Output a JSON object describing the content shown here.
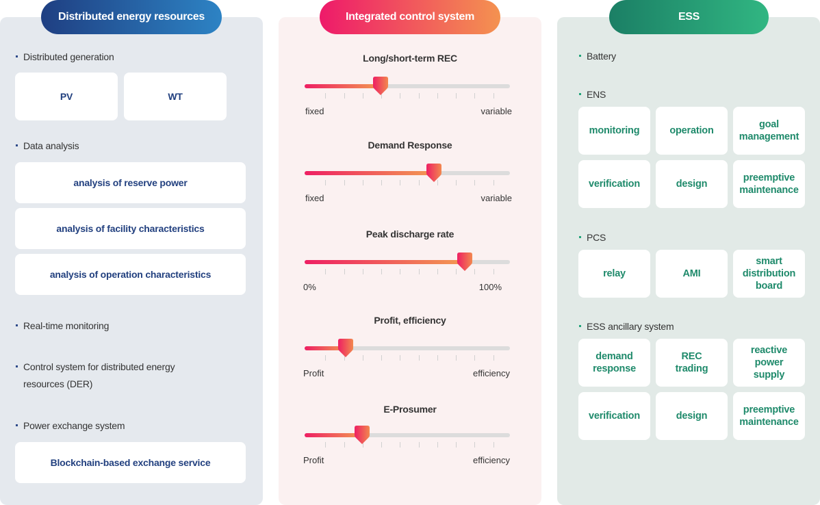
{
  "left": {
    "title": "Distributed energy resources",
    "distributed_generation": "Distributed generation",
    "pv": "PV",
    "wt": "WT",
    "data_analysis": "Data analysis",
    "analysis_items": [
      "analysis of reserve power",
      "analysis of facility characteristics",
      "analysis of operation characteristics"
    ],
    "realtime": "Real-time monitoring",
    "control_line1": "Control system for distributed energy",
    "control_line2": "resources (DER)",
    "power_exchange": "Power exchange system",
    "blockchain": "Blockchain-based exchange service"
  },
  "mid": {
    "title": "Integrated control system",
    "sliders": [
      {
        "title": "Long/short-term REC",
        "left_label": "fixed",
        "right_label": "variable",
        "value": 0.37
      },
      {
        "title": "Demand Response",
        "left_label": "fixed",
        "right_label": "variable",
        "value": 0.63
      },
      {
        "title": "Peak discharge rate",
        "left_label": "0%",
        "right_label": "100%",
        "value": 0.78
      },
      {
        "title": "Profit, efficiency",
        "left_label": "Profit",
        "right_label": "efficiency",
        "value": 0.2
      },
      {
        "title": "E-Prosumer",
        "left_label": "Profit",
        "right_label": "efficiency",
        "value": 0.28
      }
    ]
  },
  "right": {
    "title": "ESS",
    "battery": "Battery",
    "ens": "ENS",
    "ens_items": [
      [
        "monitoring"
      ],
      [
        "operation"
      ],
      [
        "goal",
        "management"
      ],
      [
        "verification"
      ],
      [
        "design"
      ],
      [
        "preemptive",
        "maintenance"
      ]
    ],
    "pcs": "PCS",
    "pcs_items": [
      [
        "relay"
      ],
      [
        "AMI"
      ],
      [
        "smart",
        "distribution",
        "board"
      ]
    ],
    "ancillary": "ESS ancillary system",
    "anc_items": [
      [
        "demand",
        "response"
      ],
      [
        "REC",
        "trading"
      ],
      [
        "reactive",
        "power",
        "supply"
      ],
      [
        "verification"
      ],
      [
        "design"
      ],
      [
        "preemptive",
        "maintenance"
      ]
    ]
  }
}
